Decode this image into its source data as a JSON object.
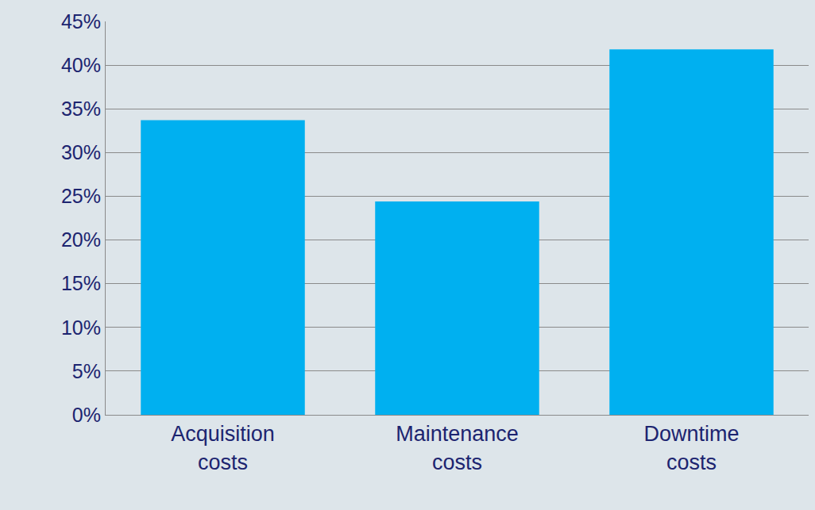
{
  "chart_data": {
    "type": "bar",
    "categories": [
      "Acquisition costs",
      "Maintenance costs",
      "Downtime costs"
    ],
    "values": [
      33.7,
      24.4,
      41.8
    ],
    "color": "#00b0f0",
    "ylim": [
      0,
      45
    ],
    "yticks": [
      {
        "value": 0,
        "label": "0%"
      },
      {
        "value": 5,
        "label": "5%"
      },
      {
        "value": 10,
        "label": "10%"
      },
      {
        "value": 15,
        "label": "15%"
      },
      {
        "value": 20,
        "label": "20%"
      },
      {
        "value": 25,
        "label": "25%"
      },
      {
        "value": 30,
        "label": "30%"
      },
      {
        "value": 35,
        "label": "35%"
      },
      {
        "value": 40,
        "label": "40%"
      },
      {
        "value": 45,
        "label": "45%"
      }
    ],
    "grid": true
  }
}
